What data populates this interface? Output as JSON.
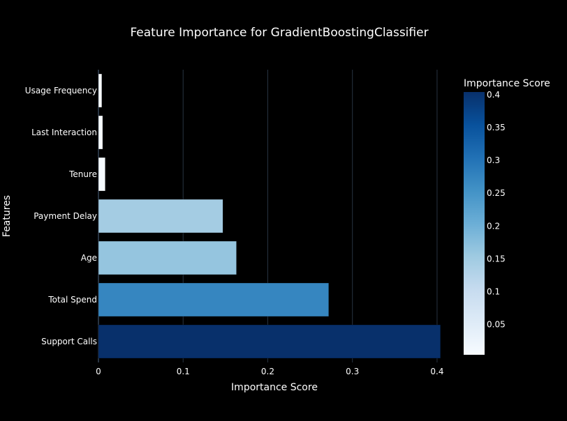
{
  "chart_data": {
    "type": "bar",
    "orientation": "horizontal",
    "title": "Feature Importance for GradientBoostingClassifier",
    "xlabel": "Importance Score",
    "ylabel": "Features",
    "xlim": [
      0,
      0.405
    ],
    "x_ticks": [
      0,
      0.1,
      0.2,
      0.3,
      0.4
    ],
    "x_tick_labels": [
      "0",
      "0.1",
      "0.2",
      "0.3",
      "0.4"
    ],
    "grid": true,
    "legend": false,
    "categories": [
      "Support Calls",
      "Total Spend",
      "Age",
      "Payment Delay",
      "Tenure",
      "Last Interaction",
      "Usage Frequency"
    ],
    "values": [
      0.404,
      0.272,
      0.163,
      0.147,
      0.008,
      0.005,
      0.004
    ],
    "colorbar": {
      "title": "Importance Score",
      "range": [
        0.004,
        0.404
      ],
      "ticks": [
        0.05,
        0.1,
        0.15,
        0.2,
        0.25,
        0.3,
        0.35,
        0.4
      ],
      "tick_labels": [
        "0.05",
        "0.1",
        "0.15",
        "0.2",
        "0.25",
        "0.3",
        "0.35",
        "0.4"
      ],
      "colorscale": "Blues",
      "colors": [
        "#f7fbff",
        "#deebf7",
        "#c6dbef",
        "#9ecae1",
        "#6baed6",
        "#4292c6",
        "#2171b5",
        "#08519c",
        "#08306b"
      ]
    },
    "colors": {
      "background": "#000000",
      "gridline": "#283442",
      "text": "#ffffff"
    }
  }
}
